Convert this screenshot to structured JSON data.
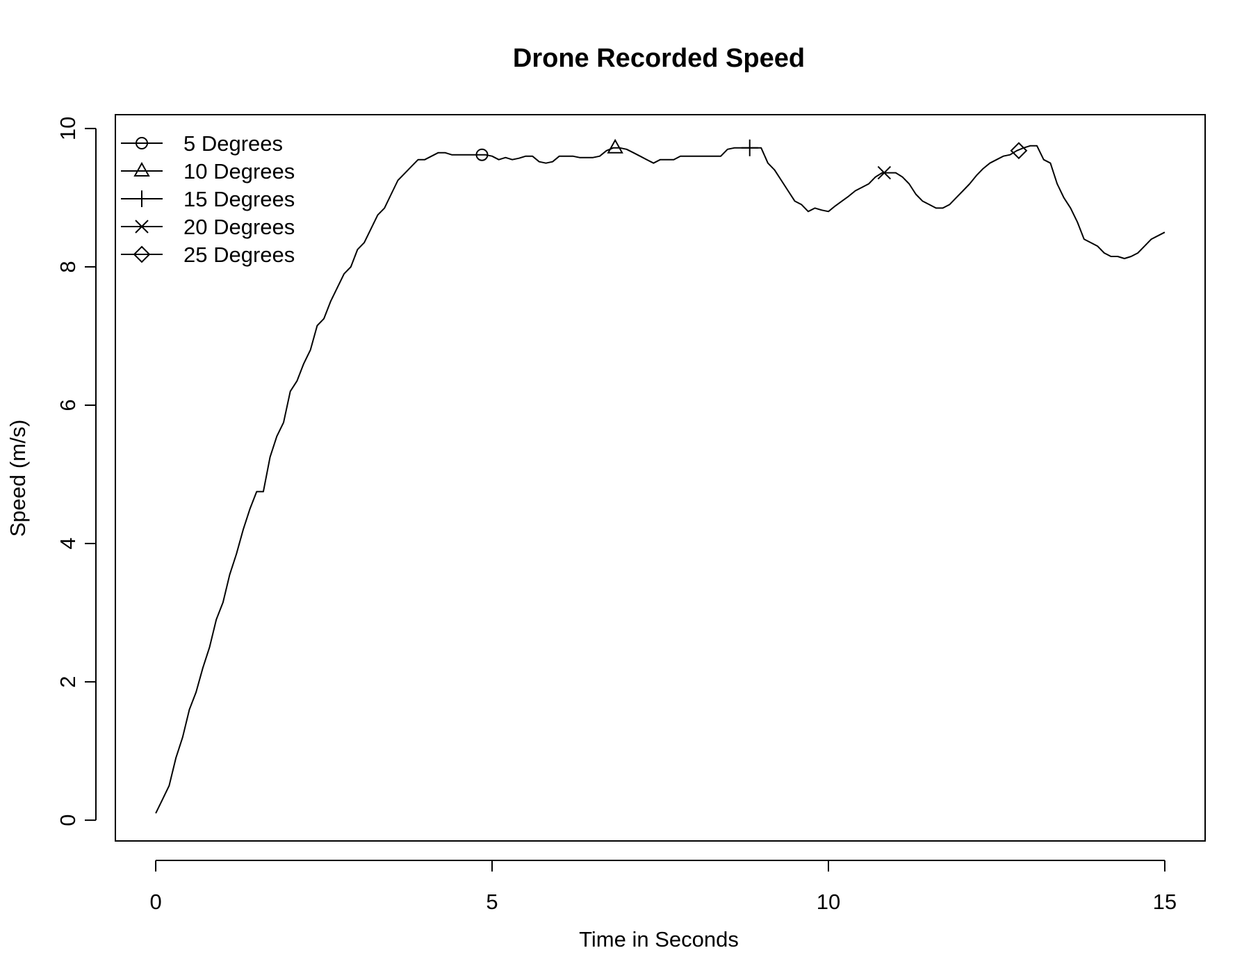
{
  "colors": {
    "line": "#000000",
    "background": "#ffffff"
  },
  "chart_data": {
    "type": "line",
    "title": "Drone Recorded Speed",
    "xlabel": "Time in Seconds",
    "ylabel": "Speed (m/s)",
    "xlim": [
      -0.6,
      15.6
    ],
    "ylim": [
      -0.3,
      10.2
    ],
    "xticks": [
      0,
      5,
      10,
      15
    ],
    "yticks": [
      0,
      2,
      4,
      6,
      8,
      10
    ],
    "grid": false,
    "legend_position": "top-left",
    "legend": [
      {
        "label": "5 Degrees",
        "symbol": "circle"
      },
      {
        "label": "10 Degrees",
        "symbol": "triangle"
      },
      {
        "label": "15 Degrees",
        "symbol": "plus"
      },
      {
        "label": "20 Degrees",
        "symbol": "cross"
      },
      {
        "label": "25 Degrees",
        "symbol": "diamond"
      }
    ],
    "markers": [
      {
        "x": 4.85,
        "y": 9.62,
        "symbol": "circle"
      },
      {
        "x": 6.83,
        "y": 9.72,
        "symbol": "triangle"
      },
      {
        "x": 8.83,
        "y": 9.72,
        "symbol": "plus"
      },
      {
        "x": 10.83,
        "y": 9.36,
        "symbol": "cross"
      },
      {
        "x": 12.83,
        "y": 9.68,
        "symbol": "diamond"
      }
    ],
    "series": [
      {
        "x": [
          0.0,
          0.1,
          0.2,
          0.3,
          0.4,
          0.5,
          0.6,
          0.7,
          0.8,
          0.9,
          1.0,
          1.1,
          1.2,
          1.3,
          1.4,
          1.5,
          1.6,
          1.7,
          1.8,
          1.9,
          2.0,
          2.1,
          2.2,
          2.3,
          2.4,
          2.5,
          2.6,
          2.7,
          2.8,
          2.9,
          3.0,
          3.1,
          3.2,
          3.3,
          3.4,
          3.5,
          3.6,
          3.7,
          3.8,
          3.9,
          4.0,
          4.1,
          4.2,
          4.3,
          4.4,
          4.5,
          4.6,
          4.7,
          4.8,
          4.9,
          5.0,
          5.1,
          5.2,
          5.3,
          5.4,
          5.5,
          5.6,
          5.7,
          5.8,
          5.9,
          6.0,
          6.1,
          6.2,
          6.3,
          6.4,
          6.5,
          6.6,
          6.7,
          6.8,
          6.9,
          7.0,
          7.1,
          7.2,
          7.3,
          7.4,
          7.5,
          7.6,
          7.7,
          7.8,
          7.9,
          8.0,
          8.1,
          8.2,
          8.3,
          8.4,
          8.5,
          8.6,
          8.7,
          8.8,
          8.9,
          9.0,
          9.1,
          9.2,
          9.3,
          9.4,
          9.5,
          9.6,
          9.7,
          9.8,
          9.9,
          10.0,
          10.1,
          10.2,
          10.3,
          10.4,
          10.5,
          10.6,
          10.7,
          10.8,
          10.9,
          11.0,
          11.1,
          11.2,
          11.3,
          11.4,
          11.5,
          11.6,
          11.7,
          11.8,
          11.9,
          12.0,
          12.1,
          12.2,
          12.3,
          12.4,
          12.5,
          12.6,
          12.7,
          12.8,
          12.9,
          13.0,
          13.1,
          13.2,
          13.3,
          13.4,
          13.5,
          13.6,
          13.7,
          13.8,
          13.9,
          14.0,
          14.1,
          14.2,
          14.3,
          14.4,
          14.5,
          14.6,
          14.7,
          14.8,
          14.9,
          15.0
        ],
        "y": [
          0.1,
          0.3,
          0.5,
          0.9,
          1.2,
          1.6,
          1.85,
          2.2,
          2.5,
          2.9,
          3.15,
          3.55,
          3.85,
          4.2,
          4.5,
          4.75,
          4.75,
          5.25,
          5.55,
          5.75,
          6.2,
          6.35,
          6.6,
          6.8,
          7.15,
          7.25,
          7.5,
          7.7,
          7.9,
          8.0,
          8.25,
          8.35,
          8.55,
          8.75,
          8.85,
          9.05,
          9.25,
          9.35,
          9.45,
          9.55,
          9.55,
          9.6,
          9.65,
          9.65,
          9.62,
          9.62,
          9.62,
          9.62,
          9.62,
          9.62,
          9.6,
          9.55,
          9.58,
          9.55,
          9.57,
          9.6,
          9.6,
          9.52,
          9.5,
          9.52,
          9.6,
          9.6,
          9.6,
          9.58,
          9.58,
          9.58,
          9.6,
          9.68,
          9.72,
          9.72,
          9.7,
          9.65,
          9.6,
          9.55,
          9.5,
          9.55,
          9.55,
          9.55,
          9.6,
          9.6,
          9.6,
          9.6,
          9.6,
          9.6,
          9.6,
          9.7,
          9.72,
          9.72,
          9.72,
          9.72,
          9.72,
          9.5,
          9.4,
          9.25,
          9.1,
          8.95,
          8.9,
          8.8,
          8.85,
          8.82,
          8.8,
          8.88,
          8.95,
          9.02,
          9.1,
          9.15,
          9.2,
          9.3,
          9.36,
          9.36,
          9.36,
          9.3,
          9.2,
          9.05,
          8.95,
          8.9,
          8.85,
          8.85,
          8.9,
          9.0,
          9.1,
          9.2,
          9.32,
          9.42,
          9.5,
          9.55,
          9.6,
          9.62,
          9.68,
          9.72,
          9.75,
          9.75,
          9.55,
          9.5,
          9.2,
          9.0,
          8.85,
          8.65,
          8.4,
          8.35,
          8.3,
          8.2,
          8.15,
          8.15,
          8.12,
          8.15,
          8.2,
          8.3,
          8.4,
          8.45,
          8.5
        ]
      }
    ]
  }
}
